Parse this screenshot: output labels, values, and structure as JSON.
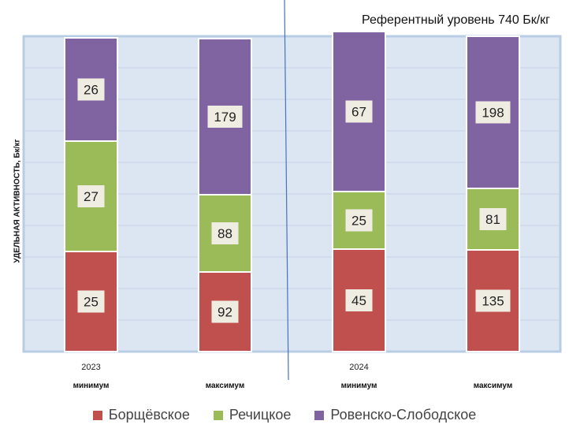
{
  "chart_data": {
    "type": "bar",
    "stacked": true,
    "title": "Референтный уровень 740 Бк/кг",
    "ylabel": "УДЕЛЬНАЯ АКТИВНОСТЬ,   Бк/кг",
    "categories": [
      "минимум",
      "максимум",
      "минимум",
      "максимум"
    ],
    "groups": [
      {
        "label": "2023",
        "categories": [
          0,
          1
        ]
      },
      {
        "label": "2024",
        "categories": [
          2,
          3
        ]
      }
    ],
    "series": [
      {
        "name": "Борщёвское",
        "color": "#c0504d",
        "values": [
          25,
          92,
          45,
          135
        ]
      },
      {
        "name": "Речицкое",
        "color": "#9bbb59",
        "values": [
          27,
          88,
          25,
          81
        ]
      },
      {
        "name": "Ровенско-Слободское",
        "color": "#8064a2",
        "values": [
          26,
          179,
          67,
          198
        ]
      }
    ],
    "grid": true,
    "legend": "bottom"
  }
}
